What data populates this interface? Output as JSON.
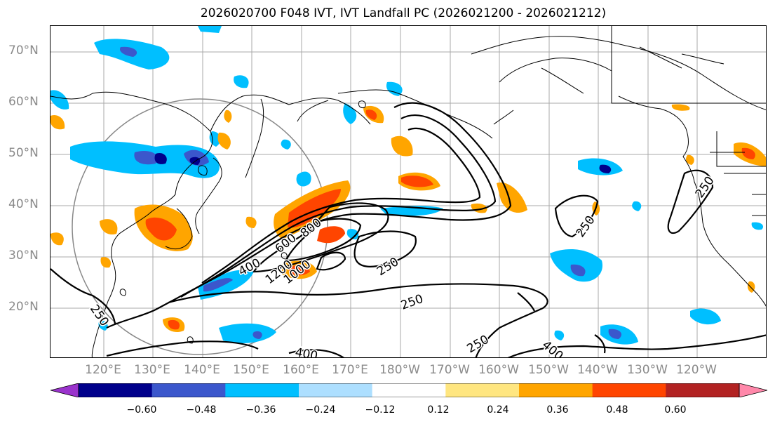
{
  "title": "2026020700 F048 IVT, IVT Landfall PC (2026021200 - 2026021212)",
  "lat_labels": [
    "70°N",
    "60°N",
    "50°N",
    "40°N",
    "30°N",
    "20°N"
  ],
  "lon_labels": [
    "120°E",
    "130°E",
    "140°E",
    "150°E",
    "160°E",
    "170°E",
    "180°W",
    "170°W",
    "160°W",
    "150°W",
    "140°W",
    "130°W",
    "120°W"
  ],
  "contour_labels": [
    "250",
    "250",
    "250",
    "250",
    "250",
    "400",
    "400",
    "600",
    "800",
    "1000",
    "1200",
    "250",
    "400"
  ],
  "colorbar": {
    "colors": [
      "#9a33cc",
      "#00008b",
      "#3b57cc",
      "#00bfff",
      "#addfff",
      "#ffffff",
      "#ffe680",
      "#ffa500",
      "#ff4500",
      "#b22222",
      "#ff88aa"
    ],
    "ticks": [
      "−0.60",
      "−0.48",
      "−0.36",
      "−0.24",
      "−0.12",
      "0.12",
      "0.24",
      "0.36",
      "0.48",
      "0.60"
    ]
  }
}
